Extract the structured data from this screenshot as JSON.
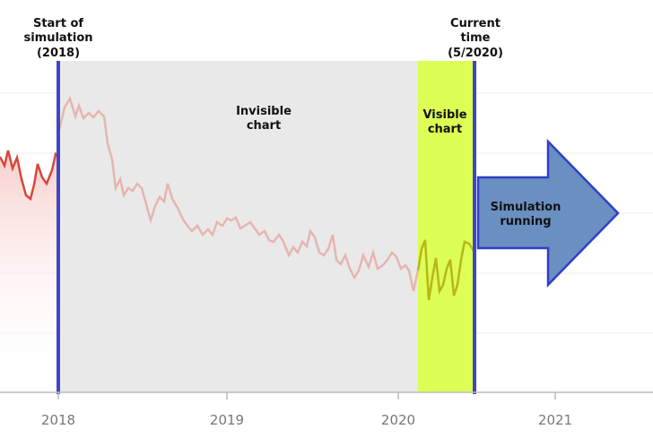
{
  "annotations": {
    "start": [
      "Start of",
      "simulation",
      "(2018)"
    ],
    "current": [
      "Current",
      "time",
      "(5/2020)"
    ],
    "invisible": [
      "Invisible",
      "chart"
    ],
    "visible": [
      "Visible",
      "chart"
    ],
    "running": [
      "Simulation",
      "running"
    ]
  },
  "axis": {
    "ticks": [
      "2018",
      "2019",
      "2020",
      "2021"
    ]
  },
  "colors": {
    "line": "#d9463a",
    "faded_line": "#e6b5b0",
    "visible_line": "#b7b618",
    "invisible_region": "#e9e9e9",
    "visible_region": "#ddfe55",
    "marker": "#3f46c4",
    "arrow_fill": "#6a8fc1",
    "arrow_stroke": "#2f3fc6"
  }
}
